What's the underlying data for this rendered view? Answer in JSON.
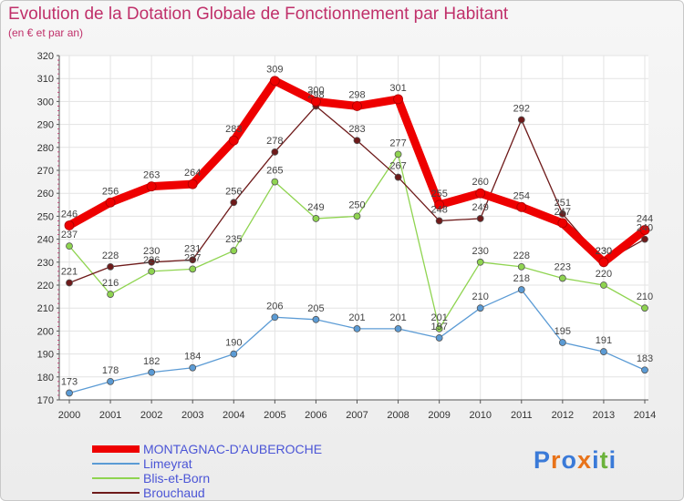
{
  "chart_data": {
    "type": "line",
    "title": "Evolution de la Dotation Globale de Fonctionnement par Habitant",
    "subtitle": "(en € et par an)",
    "categories": [
      "2000",
      "2001",
      "2002",
      "2003",
      "2004",
      "2005",
      "2006",
      "2007",
      "2008",
      "2009",
      "2010",
      "2011",
      "2012",
      "2013",
      "2014"
    ],
    "ylim": [
      170,
      320
    ],
    "yticks": [
      170,
      180,
      190,
      200,
      210,
      220,
      230,
      240,
      250,
      260,
      270,
      280,
      290,
      300,
      310,
      320
    ],
    "grid": true,
    "legend_position": "bottom-left",
    "series": [
      {
        "name": "MONTAGNAC-D'AUBEROCHE",
        "color": "#ee0000",
        "values": [
          246,
          256,
          263,
          264,
          283,
          309,
          300,
          298,
          301,
          255,
          260,
          254,
          247,
          230,
          244
        ]
      },
      {
        "name": "Limeyrat",
        "color": "#5b9bd5",
        "values": [
          173,
          178,
          182,
          184,
          190,
          206,
          205,
          201,
          201,
          197,
          210,
          218,
          195,
          191,
          183
        ]
      },
      {
        "name": "Blis-et-Born",
        "color": "#8fd450",
        "values": [
          237,
          216,
          226,
          227,
          235,
          265,
          249,
          250,
          277,
          201,
          230,
          228,
          223,
          220,
          210
        ]
      },
      {
        "name": "Brouchaud",
        "color": "#6e1a1a",
        "values": [
          221,
          228,
          230,
          231,
          256,
          278,
          298,
          283,
          267,
          248,
          249,
          292,
          251,
          230,
          240
        ]
      }
    ]
  },
  "logo": {
    "text": "Proxiti",
    "letters": [
      "P",
      "r",
      "o",
      "x",
      "i",
      "t",
      "i"
    ],
    "colors": [
      "#3a7ad8",
      "#e8731a",
      "#3a7ad8",
      "#e8731a",
      "#3a7ad8",
      "#6bb23a",
      "#3a7ad8"
    ]
  }
}
